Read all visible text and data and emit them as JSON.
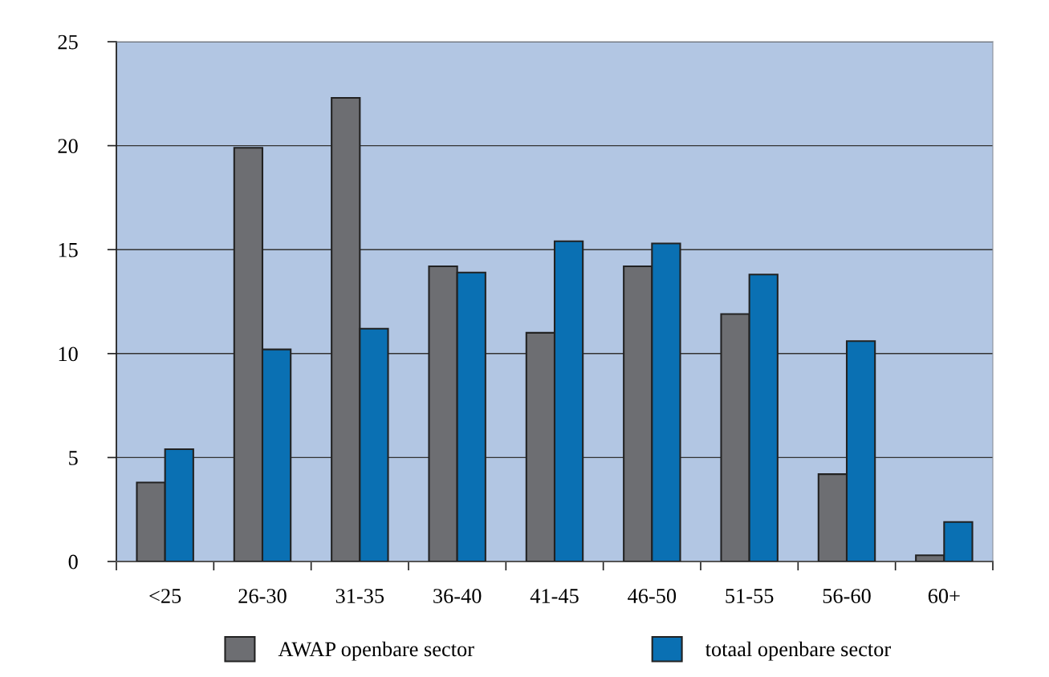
{
  "chart_data": {
    "type": "bar",
    "categories": [
      "<25",
      "26-30",
      "31-35",
      "36-40",
      "41-45",
      "46-50",
      "51-55",
      "56-60",
      "60+"
    ],
    "series": [
      {
        "name": "AWAP openbare sector",
        "color": "#6d6e72",
        "values": [
          3.8,
          19.9,
          22.3,
          14.2,
          11.0,
          14.2,
          11.9,
          4.2,
          0.3
        ]
      },
      {
        "name": "totaal openbare sector",
        "color": "#0a70b3",
        "values": [
          5.4,
          10.2,
          11.2,
          13.9,
          15.4,
          15.3,
          13.8,
          10.6,
          1.9
        ]
      }
    ],
    "ylim": [
      0,
      25
    ],
    "yticks": [
      0,
      5,
      10,
      15,
      20,
      25
    ],
    "grid": "y",
    "legend": "bottom"
  }
}
